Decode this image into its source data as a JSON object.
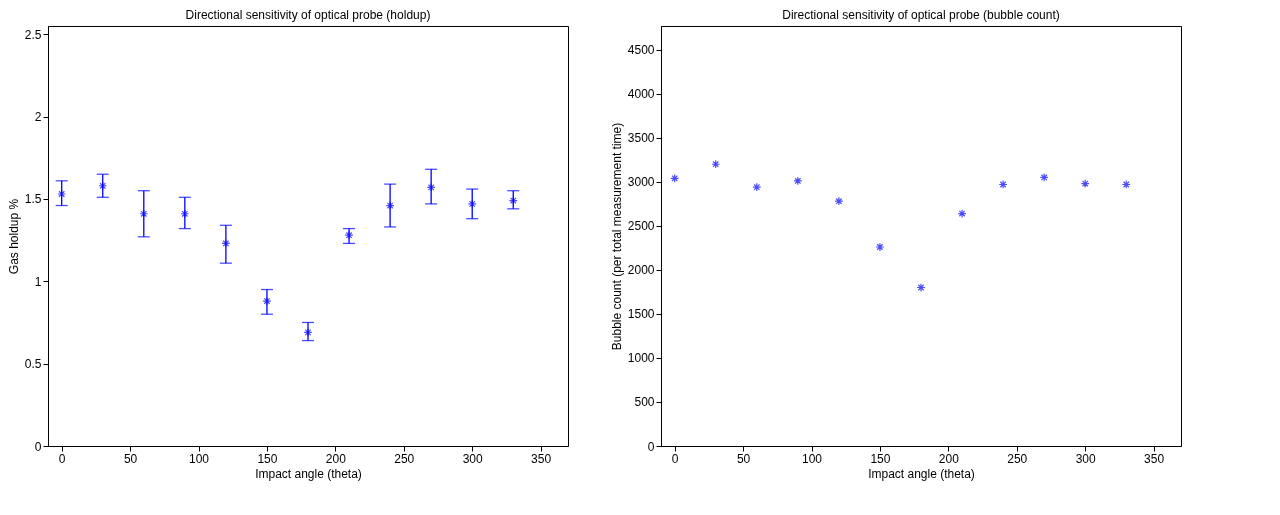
{
  "chart_data": [
    {
      "type": "scatter",
      "title": "Directional sensitivity of optical probe (holdup)",
      "xlabel": "Impact angle (theta)",
      "ylabel": "Gas holdup %",
      "x": [
        0,
        30,
        60,
        90,
        120,
        150,
        180,
        210,
        240,
        270,
        300,
        330
      ],
      "series": [
        {
          "color": "#0000ff",
          "values": [
            1.53,
            1.58,
            1.41,
            1.41,
            1.23,
            0.88,
            0.69,
            1.28,
            1.46,
            1.57,
            1.47,
            1.49
          ],
          "errors": [
            [
              1.46,
              1.61
            ],
            [
              1.51,
              1.65
            ],
            [
              1.27,
              1.55
            ],
            [
              1.32,
              1.51
            ],
            [
              1.11,
              1.34
            ],
            [
              0.8,
              0.95
            ],
            [
              0.64,
              0.75
            ],
            [
              1.23,
              1.32
            ],
            [
              1.33,
              1.59
            ],
            [
              1.47,
              1.68
            ],
            [
              1.38,
              1.56
            ],
            [
              1.44,
              1.55
            ]
          ]
        }
      ],
      "xlim": [
        -10,
        370
      ],
      "xticks": [
        0,
        50,
        100,
        150,
        200,
        250,
        300,
        350
      ],
      "ylim": [
        0,
        2.55
      ],
      "yticks": [
        0,
        0.5,
        1,
        1.5,
        2,
        2.5
      ],
      "marker": "cross"
    },
    {
      "type": "scatter",
      "title": "Directional sensitivity of optical probe (bubble count)",
      "xlabel": "Impact angle (theta)",
      "ylabel": "Bubble count (per total measurement time)",
      "x": [
        0,
        30,
        60,
        90,
        120,
        150,
        180,
        210,
        240,
        270,
        300,
        330
      ],
      "series": [
        {
          "color": "#0000ff",
          "values": [
            3040,
            3200,
            2940,
            3010,
            2780,
            2260,
            1800,
            2640,
            2970,
            3050,
            2980,
            2970
          ]
        }
      ],
      "xlim": [
        -10,
        370
      ],
      "xticks": [
        0,
        50,
        100,
        150,
        200,
        250,
        300,
        350
      ],
      "ylim": [
        0,
        4770
      ],
      "yticks": [
        0,
        500,
        1000,
        1500,
        2000,
        2500,
        3000,
        3500,
        4000,
        4500
      ],
      "marker": "cross"
    }
  ]
}
